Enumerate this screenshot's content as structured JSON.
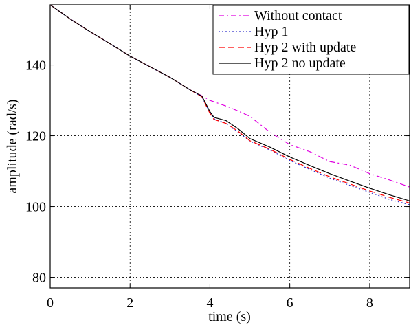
{
  "chart_data": {
    "type": "line",
    "xlabel": "time (s)",
    "ylabel": "amplitude (rad/s)",
    "xlim": [
      0,
      9
    ],
    "ylim": [
      77,
      157
    ],
    "xticks": [
      0,
      2,
      4,
      6,
      8
    ],
    "yticks": [
      80,
      100,
      120,
      140
    ],
    "xtick_labels": [
      "0",
      "2",
      "4",
      "6",
      "8"
    ],
    "ytick_labels": [
      "80",
      "100",
      "120",
      "140"
    ],
    "grid": true,
    "legend_position": "top-right",
    "series": [
      {
        "name": "Without contact",
        "color": "#e000e0",
        "dash": "dashdot",
        "points": [
          [
            0,
            157
          ],
          [
            0.5,
            153
          ],
          [
            1,
            149.4
          ],
          [
            1.5,
            146
          ],
          [
            2,
            142.5
          ],
          [
            2.5,
            139.5
          ],
          [
            3,
            136.5
          ],
          [
            3.5,
            133
          ],
          [
            3.8,
            131.3
          ],
          [
            4,
            130
          ],
          [
            4.5,
            128
          ],
          [
            5,
            125.5
          ],
          [
            5.5,
            121
          ],
          [
            6,
            117.5
          ],
          [
            6.5,
            115.5
          ],
          [
            7,
            112.7
          ],
          [
            7.5,
            111.7
          ],
          [
            8,
            109.3
          ],
          [
            8.5,
            107.5
          ],
          [
            9,
            105.5
          ]
        ]
      },
      {
        "name": "Hyp 1",
        "color": "#3333cc",
        "dash": "dotted",
        "points": [
          [
            0,
            157
          ],
          [
            0.5,
            153
          ],
          [
            1,
            149.4
          ],
          [
            1.5,
            146
          ],
          [
            2,
            142.5
          ],
          [
            2.5,
            139.5
          ],
          [
            3,
            136.5
          ],
          [
            3.5,
            133
          ],
          [
            3.8,
            131
          ],
          [
            4,
            126.5
          ],
          [
            4.1,
            124.8
          ],
          [
            4.4,
            123.5
          ],
          [
            4.7,
            121
          ],
          [
            5,
            118.5
          ],
          [
            5.5,
            116
          ],
          [
            6,
            113
          ],
          [
            6.5,
            110.5
          ],
          [
            7,
            108
          ],
          [
            7.5,
            106
          ],
          [
            8,
            104
          ],
          [
            8.5,
            102
          ],
          [
            9,
            100.5
          ]
        ]
      },
      {
        "name": "Hyp 2 with update",
        "color": "#ff0000",
        "dash": "dashed",
        "points": [
          [
            0,
            157
          ],
          [
            0.5,
            153
          ],
          [
            1,
            149.4
          ],
          [
            1.5,
            146
          ],
          [
            2,
            142.5
          ],
          [
            2.5,
            139.5
          ],
          [
            3,
            136.5
          ],
          [
            3.5,
            133
          ],
          [
            3.8,
            131
          ],
          [
            4,
            126.3
          ],
          [
            4.1,
            124.6
          ],
          [
            4.4,
            123.5
          ],
          [
            4.7,
            121.3
          ],
          [
            5,
            118.6
          ],
          [
            5.5,
            116.2
          ],
          [
            6,
            113.3
          ],
          [
            6.5,
            110.8
          ],
          [
            7,
            108.4
          ],
          [
            7.5,
            106.4
          ],
          [
            8,
            104.4
          ],
          [
            8.5,
            102.6
          ],
          [
            9,
            101
          ]
        ]
      },
      {
        "name": "Hyp 2 no update",
        "color": "#000000",
        "dash": "solid",
        "points": [
          [
            0,
            157
          ],
          [
            0.5,
            153
          ],
          [
            1,
            149.4
          ],
          [
            1.5,
            146
          ],
          [
            2,
            142.5
          ],
          [
            2.5,
            139.5
          ],
          [
            3,
            136.5
          ],
          [
            3.5,
            133
          ],
          [
            3.8,
            131.2
          ],
          [
            4,
            126.8
          ],
          [
            4.1,
            125.2
          ],
          [
            4.4,
            124.3
          ],
          [
            4.7,
            122
          ],
          [
            5,
            119.2
          ],
          [
            5.5,
            116.8
          ],
          [
            6,
            114
          ],
          [
            6.5,
            111.6
          ],
          [
            7,
            109.3
          ],
          [
            7.5,
            107.2
          ],
          [
            8,
            105.2
          ],
          [
            8.5,
            103.3
          ],
          [
            9,
            101.6
          ]
        ]
      }
    ]
  }
}
